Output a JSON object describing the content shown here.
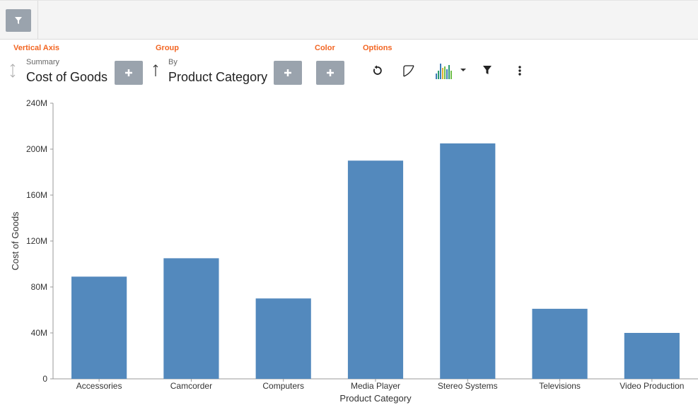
{
  "toolbar": {
    "filter_icon": "filter-icon"
  },
  "controls": {
    "vertical_axis_label": "Vertical Axis",
    "vertical_axis_caption": "Summary",
    "vertical_axis_value": "Cost of Goods",
    "group_label": "Group",
    "group_caption": "By",
    "group_value": "Product Category",
    "color_label": "Color",
    "options_label": "Options"
  },
  "options_icons": [
    "undo-icon",
    "curve-icon",
    "chart-type-icon",
    "filter-icon",
    "more-icon"
  ],
  "colors": {
    "accent": "#f26522",
    "bar": "#5389bd",
    "button": "#9aa3ad"
  },
  "chart_data": {
    "type": "bar",
    "categories": [
      "Accessories",
      "Camcorder",
      "Computers",
      "Media Player",
      "Stereo Systems",
      "Televisions",
      "Video Production"
    ],
    "values": [
      89,
      105,
      70,
      190,
      205,
      61,
      40
    ],
    "value_unit": "M",
    "xlabel": "Product Category",
    "ylabel": "Cost of Goods",
    "ylim": [
      0,
      240
    ],
    "yticks": [
      "0",
      "40M",
      "80M",
      "120M",
      "160M",
      "200M",
      "240M"
    ],
    "grid": false
  }
}
